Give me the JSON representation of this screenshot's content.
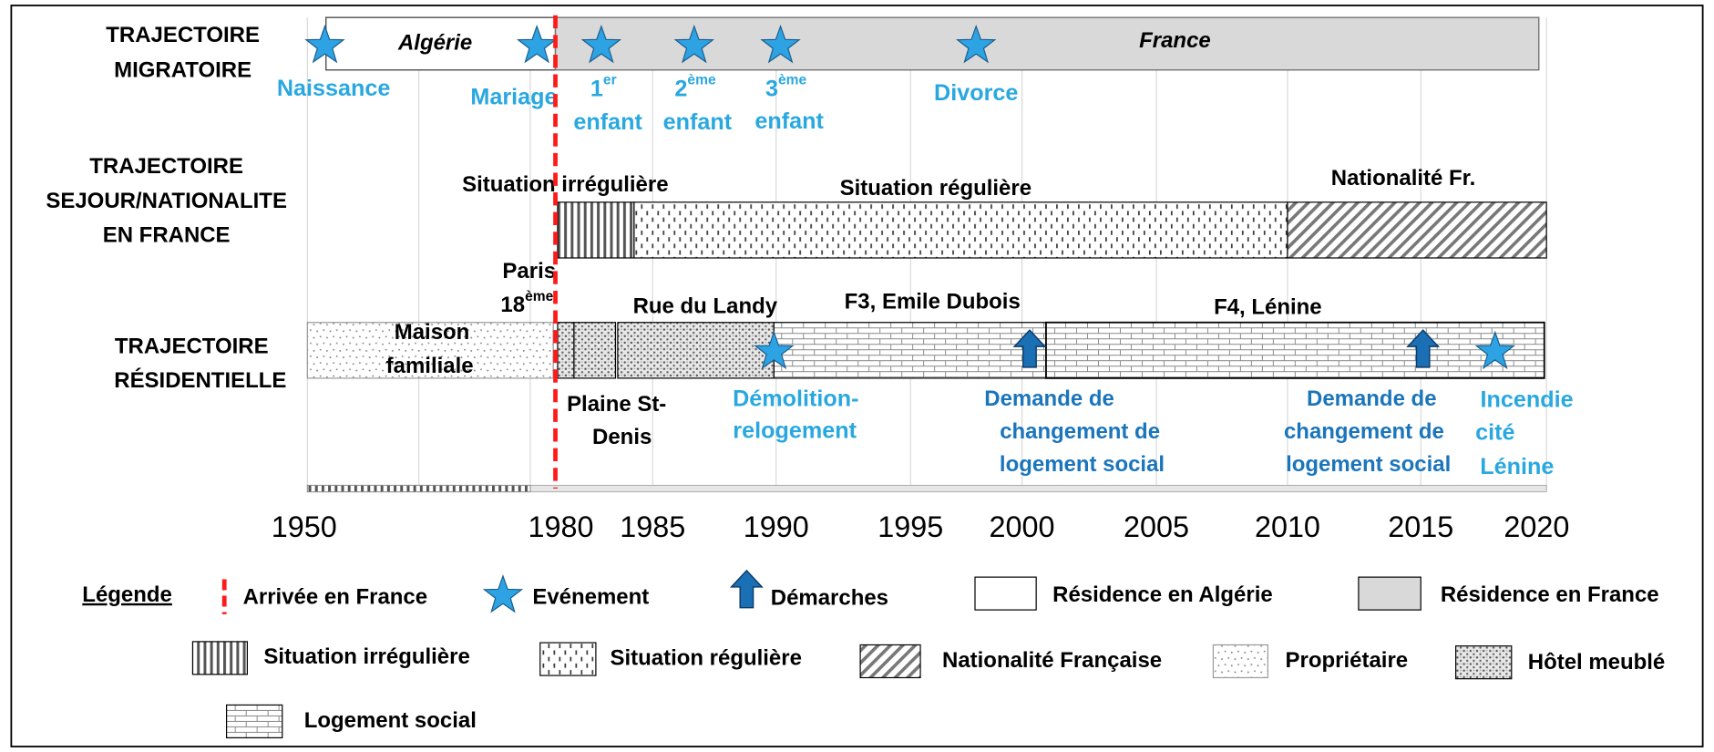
{
  "rows": {
    "migration": [
      "TRAJECTOIRE",
      "MIGRATOIRE"
    ],
    "stay": [
      "TRAJECTOIRE",
      "SEJOUR/NATIONALITE",
      "EN FRANCE"
    ],
    "residence": [
      "TRAJECTOIRE",
      "RÉSIDENTIELLE"
    ]
  },
  "migration": {
    "algeria": "Algérie",
    "france": "France",
    "events": {
      "birth": "Naissance",
      "marriage": "Mariage",
      "child1": {
        "number": "1",
        "sup": "er",
        "word": "enfant"
      },
      "child2": {
        "number": "2",
        "sup": "ème",
        "word": "enfant"
      },
      "child3": {
        "number": "3",
        "sup": "ème",
        "word": "enfant"
      },
      "divorce": "Divorce"
    }
  },
  "stay": {
    "irregular": "Situation irrégulière",
    "regular": "Situation régulière",
    "nationality": "Nationalité Fr."
  },
  "residence": {
    "paris": {
      "name": "Paris",
      "number": "18",
      "sup": "ème"
    },
    "family_house": [
      "Maison",
      "familiale"
    ],
    "plaine": [
      "Plaine St-",
      "Denis"
    ],
    "landy": "Rue du Landy",
    "f3": "F3, Emile Dubois",
    "f4": "F4, Lénine",
    "demolition": [
      "Démolition-",
      "relogement"
    ],
    "request1": [
      "Demande de",
      "changement de",
      "logement social"
    ],
    "request2": [
      "Demande de",
      "changement de",
      "logement social"
    ],
    "fire": [
      "Incendie",
      "cité",
      "Lénine"
    ]
  },
  "axis": {
    "years": [
      1950,
      1980,
      1985,
      1990,
      1995,
      2000,
      2005,
      2010,
      2015,
      2020
    ]
  },
  "legend": {
    "title": "Légende",
    "items": [
      "Arrivée en France",
      "Evénement",
      "Démarches",
      "Résidence en Algérie",
      "Résidence en France",
      "Situation irrégulière",
      "Situation régulière",
      "Nationalité Française",
      "Propriétaire",
      "Hôtel meublé",
      "Logement social"
    ]
  }
}
